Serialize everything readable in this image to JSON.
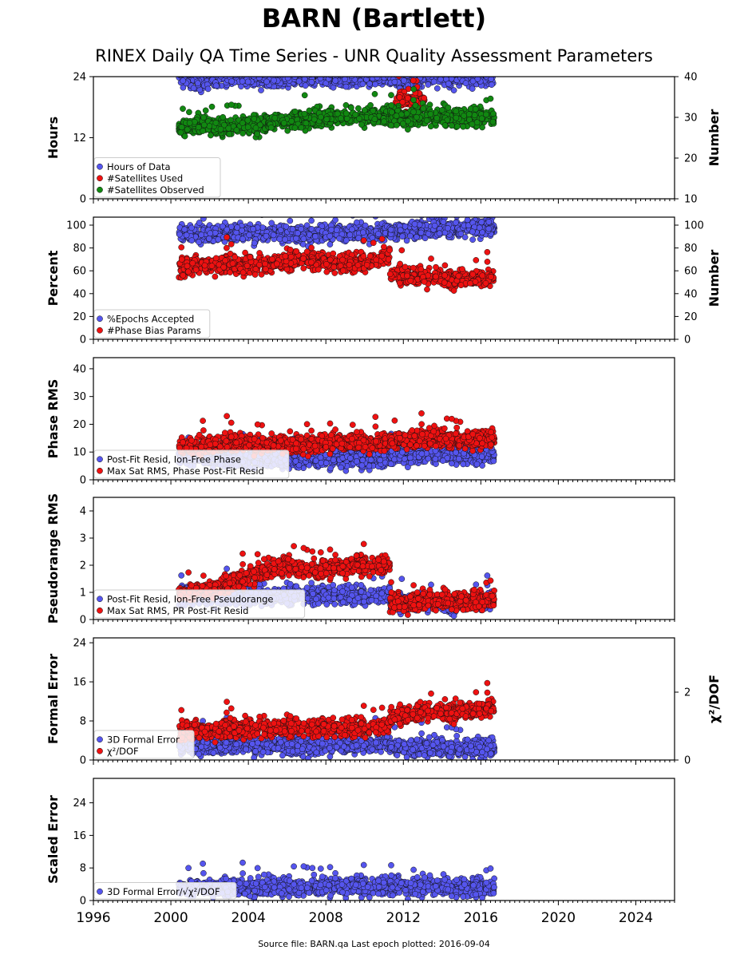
{
  "title": "BARN (Bartlett)",
  "subtitle": "RINEX Daily QA Time Series - UNR Quality Assessment Parameters",
  "footer": "Source file: BARN.qa Last epoch plotted: 2016-09-04",
  "colors": {
    "blue": "#5555ee",
    "red": "#ee1111",
    "green": "#118811",
    "edge": "#111111"
  },
  "x_axis": {
    "range": [
      1996,
      2026
    ],
    "ticks": [
      1996,
      2000,
      2004,
      2008,
      2012,
      2016,
      2020,
      2024
    ],
    "data_start": 2000.4,
    "data_end": 2016.68
  },
  "chart_data": [
    {
      "type": "scatter",
      "ylabel": "Hours",
      "right_ylabel": "Number",
      "ylim": [
        0,
        24
      ],
      "yticks": [
        0,
        12,
        24
      ],
      "right_ylim": [
        10,
        40
      ],
      "right_yticks": [
        10,
        20,
        30,
        40
      ],
      "legend": [
        "Hours of Data",
        "#Satellites Used",
        "#Satellites Observed"
      ],
      "series": [
        {
          "name": "Hours of Data",
          "color": "blue",
          "axis": "left",
          "segments": [
            {
              "from": 2000.4,
              "to": 2011.3,
              "points": [
                [
                  2000.5,
                  24.0
                ],
                [
                  2001.2,
                  23.5
                ],
                [
                  2001.6,
                  22.3
                ],
                [
                  2002.1,
                  23.6
                ],
                [
                  2003.4,
                  23.8
                ],
                [
                  2004.9,
                  23.5
                ],
                [
                  2006.3,
                  23.8
                ],
                [
                  2007.8,
                  23.9
                ],
                [
                  2009.2,
                  23.7
                ],
                [
                  2010.6,
                  24.0
                ],
                [
                  2011.2,
                  23.9
                ]
              ]
            },
            {
              "from": 2011.3,
              "to": 2016.7,
              "points": [
                [
                  2011.4,
                  23.9
                ],
                [
                  2012.0,
                  23.2
                ],
                [
                  2012.6,
                  23.7
                ],
                [
                  2013.5,
                  23.8
                ],
                [
                  2014.4,
                  23.9
                ],
                [
                  2015.5,
                  23.8
                ],
                [
                  2016.6,
                  23.9
                ]
              ]
            }
          ]
        },
        {
          "name": "#Satellites Used",
          "color": "red",
          "axis": "right",
          "segments": [
            {
              "from": 2011.6,
              "to": 2013.1,
              "points": [
                [
                  2011.6,
                  34.0
                ],
                [
                  2012.2,
                  34.5
                ],
                [
                  2012.8,
                  34.2
                ],
                [
                  2013.1,
                  34.0
                ]
              ]
            }
          ]
        },
        {
          "name": "#Satellites Observed",
          "color": "green",
          "axis": "right",
          "segments": [
            {
              "from": 2000.4,
              "to": 2005.0,
              "points": [
                [
                  2000.5,
                  27.0
                ],
                [
                  2001.5,
                  28.5
                ],
                [
                  2002.5,
                  27.5
                ],
                [
                  2003.5,
                  28.5
                ],
                [
                  2004.5,
                  27.8
                ],
                [
                  2005.0,
                  28.5
                ]
              ]
            },
            {
              "from": 2005.0,
              "to": 2011.3,
              "points": [
                [
                  2005.5,
                  29.0
                ],
                [
                  2006.5,
                  29.2
                ],
                [
                  2007.5,
                  29.5
                ],
                [
                  2008.5,
                  30.0
                ],
                [
                  2009.5,
                  30.2
                ],
                [
                  2010.5,
                  30.5
                ],
                [
                  2011.2,
                  30.5
                ]
              ]
            },
            {
              "from": 2011.3,
              "to": 2016.7,
              "points": [
                [
                  2011.4,
                  30.3
                ],
                [
                  2012.0,
                  30.0
                ],
                [
                  2013.0,
                  30.2
                ],
                [
                  2014.0,
                  30.2
                ],
                [
                  2015.0,
                  30.0
                ],
                [
                  2016.0,
                  30.2
                ],
                [
                  2016.6,
                  30.0
                ]
              ]
            }
          ]
        }
      ]
    },
    {
      "type": "scatter",
      "ylabel": "Percent",
      "right_ylabel": "Number",
      "ylim": [
        0,
        107
      ],
      "yticks": [
        0,
        20,
        40,
        60,
        80,
        100
      ],
      "right_ylim": [
        0,
        107
      ],
      "right_yticks": [
        0,
        20,
        40,
        60,
        80,
        100
      ],
      "legend": [
        "%Epochs Accepted",
        "#Phase Bias Params"
      ],
      "series": [
        {
          "name": "%Epochs Accepted",
          "color": "blue",
          "axis": "left",
          "segments": [
            {
              "from": 2000.4,
              "to": 2011.3,
              "points": [
                [
                  2000.5,
                  93.0
                ],
                [
                  2003.0,
                  92.5
                ],
                [
                  2006.0,
                  93.0
                ],
                [
                  2009.0,
                  93.0
                ],
                [
                  2011.2,
                  93.0
                ]
              ]
            },
            {
              "from": 2011.3,
              "to": 2016.7,
              "points": [
                [
                  2011.4,
                  94.0
                ],
                [
                  2013.0,
                  96.0
                ],
                [
                  2015.0,
                  97.5
                ],
                [
                  2016.6,
                  98.0
                ]
              ]
            }
          ]
        },
        {
          "name": "#Phase Bias Params",
          "color": "red",
          "axis": "right",
          "segments": [
            {
              "from": 2000.4,
              "to": 2011.3,
              "points": [
                [
                  2000.5,
                  62.0
                ],
                [
                  2002.0,
                  66.0
                ],
                [
                  2004.0,
                  64.0
                ],
                [
                  2006.0,
                  68.0
                ],
                [
                  2007.0,
                  70.0
                ],
                [
                  2008.5,
                  66.0
                ],
                [
                  2010.0,
                  68.0
                ],
                [
                  2011.0,
                  72.0
                ]
              ]
            },
            {
              "from": 2011.3,
              "to": 2016.7,
              "points": [
                [
                  2011.4,
                  58.0
                ],
                [
                  2012.5,
                  55.0
                ],
                [
                  2014.0,
                  54.0
                ],
                [
                  2015.5,
                  54.0
                ],
                [
                  2016.6,
                  53.0
                ]
              ]
            }
          ]
        }
      ]
    },
    {
      "type": "scatter",
      "ylabel": "Phase RMS",
      "ylim": [
        0,
        44
      ],
      "yticks": [
        0,
        10,
        20,
        30,
        40
      ],
      "legend": [
        "Post-Fit Resid, Ion-Free Phase",
        "Max Sat RMS, Phase Post-Fit Resid"
      ],
      "series": [
        {
          "name": "Post-Fit Resid, Ion-Free Phase",
          "color": "blue",
          "axis": "left",
          "segments": [
            {
              "from": 2000.4,
              "to": 2011.3,
              "points": [
                [
                  2000.5,
                  8.0
                ],
                [
                  2004.0,
                  7.5
                ],
                [
                  2008.0,
                  7.5
                ],
                [
                  2011.2,
                  7.5
                ]
              ]
            },
            {
              "from": 2011.3,
              "to": 2016.7,
              "points": [
                [
                  2011.4,
                  9.0
                ],
                [
                  2014.0,
                  9.0
                ],
                [
                  2016.6,
                  9.0
                ]
              ]
            }
          ]
        },
        {
          "name": "Max Sat RMS, Phase Post-Fit Resid",
          "color": "red",
          "axis": "left",
          "segments": [
            {
              "from": 2000.4,
              "to": 2011.3,
              "points": [
                [
                  2000.5,
                  12.0
                ],
                [
                  2003.0,
                  13.0
                ],
                [
                  2006.0,
                  13.0
                ],
                [
                  2009.0,
                  13.5
                ],
                [
                  2011.2,
                  13.0
                ]
              ]
            },
            {
              "from": 2011.3,
              "to": 2016.7,
              "points": [
                [
                  2011.4,
                  14.0
                ],
                [
                  2013.0,
                  15.0
                ],
                [
                  2015.0,
                  14.5
                ],
                [
                  2016.6,
                  15.0
                ]
              ]
            }
          ]
        }
      ]
    },
    {
      "type": "scatter",
      "ylabel": "Pseudorange RMS",
      "ylim": [
        0,
        4.5
      ],
      "yticks": [
        0,
        1,
        2,
        3,
        4
      ],
      "legend": [
        "Post-Fit Resid, Ion-Free Pseudorange",
        "Max Sat RMS, PR Post-Fit Resid"
      ],
      "series": [
        {
          "name": "Post-Fit Resid, Ion-Free Pseudorange",
          "color": "blue",
          "axis": "left",
          "segments": [
            {
              "from": 2000.4,
              "to": 2011.3,
              "points": [
                [
                  2000.5,
                  0.85
                ],
                [
                  2004.0,
                  0.85
                ],
                [
                  2008.0,
                  0.9
                ],
                [
                  2011.2,
                  0.9
                ]
              ]
            },
            {
              "from": 2011.3,
              "to": 2016.7,
              "points": [
                [
                  2011.4,
                  0.6
                ],
                [
                  2014.0,
                  0.6
                ],
                [
                  2016.6,
                  0.65
                ]
              ]
            }
          ]
        },
        {
          "name": "Max Sat RMS, PR Post-Fit Resid",
          "color": "red",
          "axis": "left",
          "segments": [
            {
              "from": 2000.4,
              "to": 2011.3,
              "points": [
                [
                  2000.5,
                  0.95
                ],
                [
                  2002.0,
                  1.1
                ],
                [
                  2003.0,
                  1.3
                ],
                [
                  2004.0,
                  1.6
                ],
                [
                  2005.0,
                  1.8
                ],
                [
                  2006.0,
                  2.0
                ],
                [
                  2007.5,
                  1.8
                ],
                [
                  2008.5,
                  1.9
                ],
                [
                  2010.0,
                  2.0
                ],
                [
                  2011.2,
                  2.0
                ]
              ]
            },
            {
              "from": 2011.3,
              "to": 2016.7,
              "points": [
                [
                  2011.4,
                  0.6
                ],
                [
                  2013.0,
                  0.65
                ],
                [
                  2015.0,
                  0.7
                ],
                [
                  2016.6,
                  0.75
                ]
              ]
            }
          ]
        }
      ]
    },
    {
      "type": "scatter",
      "ylabel": "Formal Error",
      "right_ylabel": "χ²/DOF",
      "ylim": [
        0,
        25
      ],
      "yticks": [
        0,
        8,
        16,
        24
      ],
      "right_ylim": [
        0,
        3.6
      ],
      "right_yticks": [
        0,
        2
      ],
      "legend": [
        "3D Formal Error",
        "χ²/DOF"
      ],
      "series": [
        {
          "name": "3D Formal Error",
          "color": "blue",
          "axis": "left",
          "segments": [
            {
              "from": 2000.4,
              "to": 2011.3,
              "points": [
                [
                  2000.5,
                  3.0
                ],
                [
                  2004.0,
                  3.0
                ],
                [
                  2008.0,
                  3.0
                ],
                [
                  2011.2,
                  3.2
                ]
              ]
            },
            {
              "from": 2011.3,
              "to": 2016.7,
              "points": [
                [
                  2011.4,
                  2.6
                ],
                [
                  2014.0,
                  2.5
                ],
                [
                  2016.6,
                  2.6
                ]
              ]
            }
          ]
        },
        {
          "name": "χ²/DOF",
          "color": "red",
          "axis": "right",
          "segments": [
            {
              "from": 2000.4,
              "to": 2011.3,
              "points": [
                [
                  2000.5,
                  0.85
                ],
                [
                  2003.0,
                  0.9
                ],
                [
                  2006.0,
                  0.95
                ],
                [
                  2009.0,
                  0.95
                ],
                [
                  2011.2,
                  1.0
                ]
              ]
            },
            {
              "from": 2011.3,
              "to": 2016.7,
              "points": [
                [
                  2011.4,
                  1.3
                ],
                [
                  2013.0,
                  1.4
                ],
                [
                  2015.0,
                  1.45
                ],
                [
                  2016.6,
                  1.5
                ]
              ]
            }
          ]
        }
      ]
    },
    {
      "type": "scatter",
      "ylabel": "Scaled Error",
      "ylim": [
        0,
        30
      ],
      "yticks": [
        0,
        8,
        16,
        24
      ],
      "legend": [
        "3D Formal Error/√χ²/DOF"
      ],
      "series": [
        {
          "name": "3D Formal Error/√χ²/DOF",
          "color": "blue",
          "axis": "left",
          "segments": [
            {
              "from": 2000.4,
              "to": 2011.3,
              "points": [
                [
                  2000.5,
                  3.0
                ],
                [
                  2004.0,
                  3.2
                ],
                [
                  2008.0,
                  3.5
                ],
                [
                  2011.2,
                  3.5
                ]
              ]
            },
            {
              "from": 2011.3,
              "to": 2016.7,
              "points": [
                [
                  2011.4,
                  3.5
                ],
                [
                  2014.0,
                  3.2
                ],
                [
                  2016.6,
                  3.3
                ]
              ]
            }
          ]
        }
      ]
    }
  ]
}
